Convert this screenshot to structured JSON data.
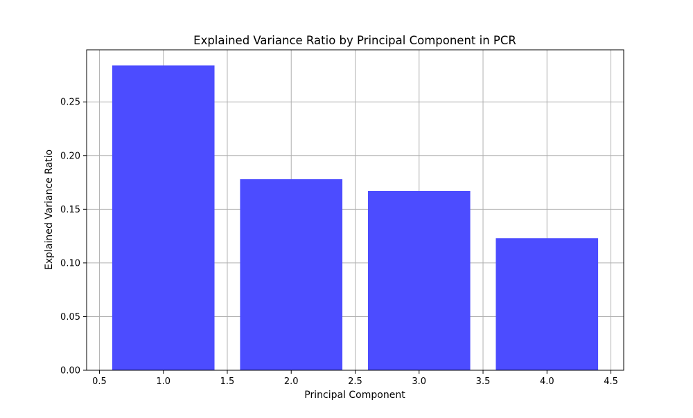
{
  "chart_data": {
    "type": "bar",
    "title": "Explained Variance Ratio by Principal Component in PCR",
    "xlabel": "Principal Component",
    "ylabel": "Explained Variance Ratio",
    "x": [
      1,
      2,
      3,
      4
    ],
    "values": [
      0.284,
      0.178,
      0.167,
      0.123
    ],
    "bar_width": 0.8,
    "xlim": [
      0.4,
      4.6
    ],
    "ylim": [
      0,
      0.2985
    ],
    "xticks": [
      0.5,
      1.0,
      1.5,
      2.0,
      2.5,
      3.0,
      3.5,
      4.0,
      4.5
    ],
    "xtick_labels": [
      "0.5",
      "1.0",
      "1.5",
      "2.0",
      "2.5",
      "3.0",
      "3.5",
      "4.0",
      "4.5"
    ],
    "yticks": [
      0.0,
      0.05,
      0.1,
      0.15,
      0.2,
      0.25
    ],
    "ytick_labels": [
      "0.00",
      "0.05",
      "0.10",
      "0.15",
      "0.20",
      "0.25"
    ],
    "grid": true,
    "legend": "none",
    "colors": {
      "bar": "#4c4cff",
      "grid": "#b0b0b0",
      "axis": "#000000"
    }
  }
}
